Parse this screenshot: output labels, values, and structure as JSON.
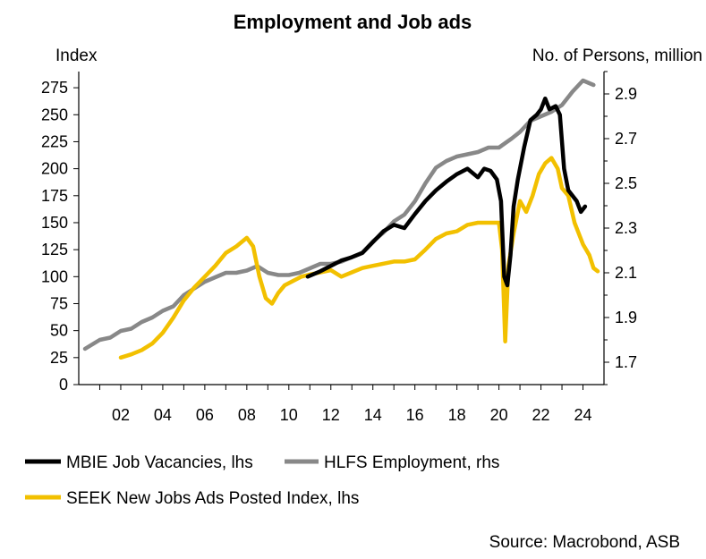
{
  "chart_data": {
    "type": "line",
    "title": "Employment and Job ads",
    "ylabel_left": "Index",
    "ylabel_right": "No. of Persons, million",
    "x_range": [
      2000,
      2025
    ],
    "x_ticks": [
      2002,
      2004,
      2006,
      2008,
      2010,
      2012,
      2014,
      2016,
      2018,
      2020,
      2022,
      2024
    ],
    "x_tick_labels": [
      "02",
      "04",
      "06",
      "08",
      "10",
      "12",
      "14",
      "16",
      "18",
      "20",
      "22",
      "24"
    ],
    "ylim_left": [
      0,
      290
    ],
    "y_ticks_left": [
      0,
      25,
      50,
      75,
      100,
      125,
      150,
      175,
      200,
      225,
      250,
      275
    ],
    "y_tick_labels_left": [
      "0",
      "25",
      "50",
      "75",
      "100",
      "125",
      "150",
      "175",
      "200",
      "225",
      "250",
      "275"
    ],
    "ylim_right": [
      1.6,
      3.0
    ],
    "y_ticks_right": [
      1.7,
      1.9,
      2.1,
      2.3,
      2.5,
      2.7,
      2.9
    ],
    "y_tick_labels_right": [
      "1.7",
      "1.9",
      "2.1",
      "2.3",
      "2.5",
      "2.7",
      "2.9"
    ],
    "grid": false,
    "legend_position": "bottom",
    "source": "Source: Macrobond, ASB",
    "series": [
      {
        "name": "MBIE Job Vacancies, lhs",
        "axis": "left",
        "color": "#000000",
        "x": [
          2010.9,
          2011.5,
          2012.0,
          2012.5,
          2013.0,
          2013.5,
          2014.0,
          2014.5,
          2015.0,
          2015.5,
          2016.0,
          2016.5,
          2017.0,
          2017.5,
          2018.0,
          2018.5,
          2019.0,
          2019.3,
          2019.6,
          2019.9,
          2020.1,
          2020.25,
          2020.4,
          2020.55,
          2020.7,
          2020.9,
          2021.2,
          2021.5,
          2021.8,
          2022.0,
          2022.2,
          2022.4,
          2022.7,
          2022.9,
          2023.1,
          2023.3,
          2023.5,
          2023.7,
          2023.9,
          2024.1
        ],
        "y": [
          100,
          105,
          110,
          115,
          118,
          122,
          132,
          142,
          148,
          145,
          158,
          170,
          180,
          188,
          195,
          200,
          192,
          200,
          198,
          190,
          170,
          100,
          92,
          120,
          165,
          190,
          220,
          245,
          250,
          255,
          265,
          255,
          258,
          250,
          200,
          180,
          175,
          170,
          160,
          165
        ]
      },
      {
        "name": "HLFS Employment, rhs",
        "axis": "right",
        "color": "#888888",
        "x": [
          2000.3,
          2001.0,
          2001.5,
          2002.0,
          2002.5,
          2003.0,
          2003.5,
          2004.0,
          2004.5,
          2005.0,
          2005.5,
          2006.0,
          2006.5,
          2007.0,
          2007.5,
          2008.0,
          2008.5,
          2009.0,
          2009.5,
          2010.0,
          2010.5,
          2011.0,
          2011.5,
          2012.0,
          2012.5,
          2013.0,
          2013.5,
          2014.0,
          2014.5,
          2015.0,
          2015.5,
          2016.0,
          2016.5,
          2017.0,
          2017.5,
          2018.0,
          2018.5,
          2019.0,
          2019.5,
          2020.0,
          2020.3,
          2020.6,
          2021.0,
          2021.5,
          2022.0,
          2022.5,
          2023.0,
          2023.5,
          2024.0,
          2024.5
        ],
        "y": [
          1.76,
          1.8,
          1.81,
          1.84,
          1.85,
          1.88,
          1.9,
          1.93,
          1.95,
          2.0,
          2.03,
          2.06,
          2.08,
          2.1,
          2.1,
          2.11,
          2.13,
          2.1,
          2.09,
          2.09,
          2.1,
          2.12,
          2.14,
          2.14,
          2.15,
          2.17,
          2.19,
          2.24,
          2.28,
          2.33,
          2.36,
          2.42,
          2.5,
          2.57,
          2.6,
          2.62,
          2.63,
          2.64,
          2.66,
          2.66,
          2.68,
          2.7,
          2.73,
          2.78,
          2.8,
          2.82,
          2.85,
          2.91,
          2.96,
          2.94
        ]
      },
      {
        "name": "SEEK New Jobs Ads Posted Index, lhs",
        "axis": "left",
        "color": "#F2C000",
        "x": [
          2002.0,
          2002.5,
          2003.0,
          2003.5,
          2004.0,
          2004.5,
          2005.0,
          2005.5,
          2006.0,
          2006.5,
          2007.0,
          2007.5,
          2008.0,
          2008.3,
          2008.6,
          2008.9,
          2009.2,
          2009.5,
          2009.8,
          2010.2,
          2010.6,
          2011.0,
          2011.5,
          2012.0,
          2012.5,
          2013.0,
          2013.5,
          2014.0,
          2014.5,
          2015.0,
          2015.5,
          2016.0,
          2016.5,
          2017.0,
          2017.5,
          2018.0,
          2018.5,
          2019.0,
          2019.5,
          2020.0,
          2020.15,
          2020.3,
          2020.45,
          2020.7,
          2021.0,
          2021.3,
          2021.6,
          2021.9,
          2022.2,
          2022.5,
          2022.8,
          2023.0,
          2023.3,
          2023.6,
          2024.0,
          2024.3,
          2024.5,
          2024.7
        ],
        "y": [
          25,
          28,
          32,
          38,
          48,
          62,
          78,
          90,
          100,
          110,
          122,
          128,
          136,
          128,
          100,
          80,
          75,
          85,
          92,
          96,
          100,
          102,
          104,
          106,
          100,
          104,
          108,
          110,
          112,
          114,
          114,
          116,
          125,
          135,
          140,
          142,
          148,
          150,
          150,
          150,
          125,
          40,
          110,
          140,
          170,
          160,
          175,
          195,
          205,
          210,
          200,
          182,
          175,
          150,
          130,
          120,
          108,
          105
        ]
      }
    ]
  }
}
